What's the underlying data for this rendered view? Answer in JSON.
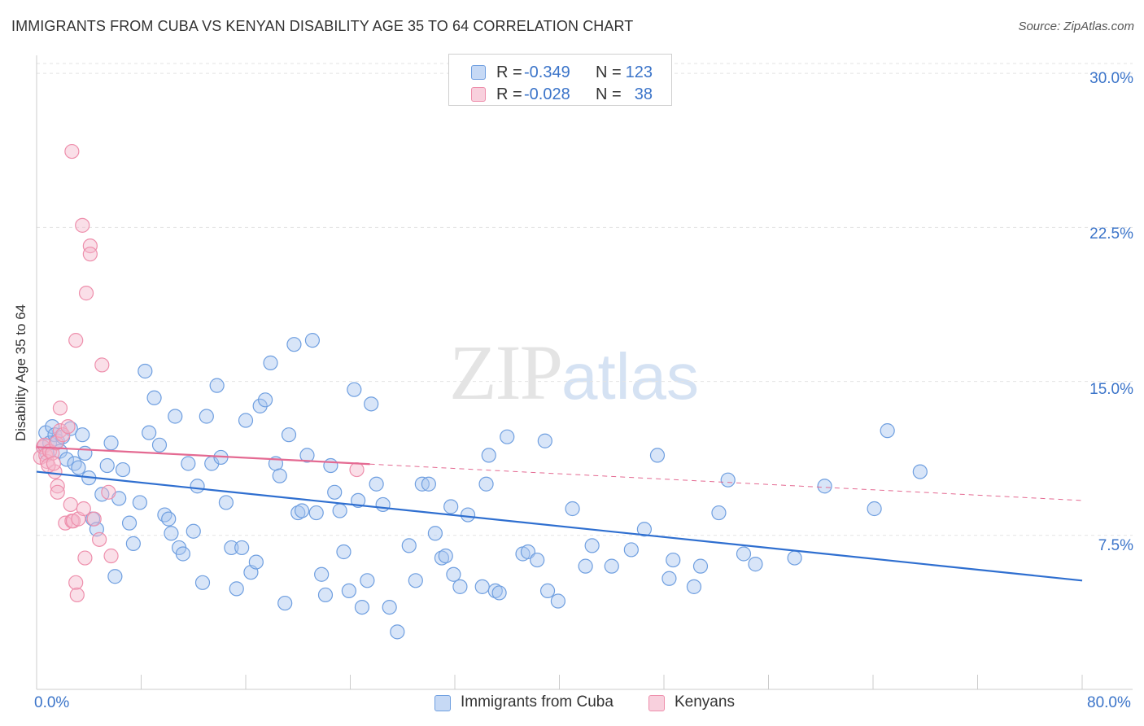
{
  "header": {
    "title": "IMMIGRANTS FROM CUBA VS KENYAN DISABILITY AGE 35 TO 64 CORRELATION CHART",
    "source": "Source: ZipAtlas.com"
  },
  "watermark": {
    "zip": "ZIP",
    "atlas": "atlas"
  },
  "legend_top": {
    "rows": [
      {
        "r_label": "R =",
        "r_value": "-0.349",
        "n_label": "N =",
        "n_value": "123",
        "color": "#a8c5ef"
      },
      {
        "r_label": "R =",
        "r_value": "-0.028",
        "n_label": "N =",
        "n_value": "38",
        "color": "#f4b8cb"
      }
    ]
  },
  "legend_bottom": [
    {
      "label": "Immigrants from Cuba",
      "color": "#a8c5ef"
    },
    {
      "label": "Kenyans",
      "color": "#f4b8cb"
    }
  ],
  "chart_data": {
    "type": "scatter",
    "title": "IMMIGRANTS FROM CUBA VS KENYAN DISABILITY AGE 35 TO 64 CORRELATION CHART",
    "xlabel": "",
    "ylabel": "Disability Age 35 to 64",
    "xlim": [
      0,
      80
    ],
    "ylim": [
      0,
      30.8
    ],
    "x_tick_labels": [
      "0.0%",
      "80.0%"
    ],
    "y_ticks": [
      7.5,
      15.0,
      22.5,
      30.0
    ],
    "y_tick_labels": [
      "7.5%",
      "15.0%",
      "22.5%",
      "30.0%"
    ],
    "grid": true,
    "series": [
      {
        "name": "Immigrants from Cuba",
        "color": "#6f9fe0",
        "fill": "#a8c5ef",
        "trend": {
          "x": [
            0,
            80
          ],
          "y": [
            10.6,
            5.3
          ],
          "color": "#2f6fd0",
          "dashed_from": null
        },
        "points": [
          [
            0.5,
            11.8
          ],
          [
            0.7,
            12.5
          ],
          [
            0.8,
            11.5
          ],
          [
            1.0,
            12.0
          ],
          [
            1.2,
            12.8
          ],
          [
            1.4,
            12.4
          ],
          [
            1.6,
            12.1
          ],
          [
            1.8,
            11.6
          ],
          [
            2.0,
            12.3
          ],
          [
            2.3,
            11.2
          ],
          [
            2.6,
            12.7
          ],
          [
            2.9,
            11.0
          ],
          [
            3.2,
            10.8
          ],
          [
            3.5,
            12.4
          ],
          [
            3.7,
            11.5
          ],
          [
            4.0,
            10.3
          ],
          [
            4.3,
            8.3
          ],
          [
            4.6,
            7.8
          ],
          [
            5.0,
            9.5
          ],
          [
            5.4,
            10.9
          ],
          [
            5.7,
            12.0
          ],
          [
            6.0,
            5.5
          ],
          [
            6.3,
            9.3
          ],
          [
            6.6,
            10.7
          ],
          [
            7.1,
            8.1
          ],
          [
            7.4,
            7.1
          ],
          [
            7.9,
            9.1
          ],
          [
            8.3,
            15.5
          ],
          [
            8.6,
            12.5
          ],
          [
            9.0,
            14.2
          ],
          [
            9.4,
            11.9
          ],
          [
            9.8,
            8.5
          ],
          [
            10.1,
            8.3
          ],
          [
            10.3,
            7.6
          ],
          [
            10.6,
            13.3
          ],
          [
            10.9,
            6.9
          ],
          [
            11.2,
            6.6
          ],
          [
            11.6,
            11.0
          ],
          [
            12.0,
            7.7
          ],
          [
            12.3,
            9.9
          ],
          [
            12.7,
            5.2
          ],
          [
            13.0,
            13.3
          ],
          [
            13.4,
            11.0
          ],
          [
            13.8,
            14.8
          ],
          [
            14.1,
            11.3
          ],
          [
            14.5,
            9.1
          ],
          [
            14.9,
            6.9
          ],
          [
            15.3,
            4.9
          ],
          [
            15.7,
            6.9
          ],
          [
            16.0,
            13.1
          ],
          [
            16.4,
            5.7
          ],
          [
            16.8,
            6.2
          ],
          [
            17.1,
            13.8
          ],
          [
            17.5,
            14.1
          ],
          [
            17.9,
            15.9
          ],
          [
            18.3,
            11.0
          ],
          [
            18.6,
            10.4
          ],
          [
            19.0,
            4.2
          ],
          [
            19.3,
            12.4
          ],
          [
            19.7,
            16.8
          ],
          [
            20.0,
            8.6
          ],
          [
            20.3,
            8.7
          ],
          [
            20.7,
            11.4
          ],
          [
            21.1,
            17.0
          ],
          [
            21.4,
            8.6
          ],
          [
            21.8,
            5.6
          ],
          [
            22.1,
            4.6
          ],
          [
            22.5,
            10.9
          ],
          [
            22.8,
            9.6
          ],
          [
            23.2,
            8.7
          ],
          [
            23.5,
            6.7
          ],
          [
            23.9,
            4.8
          ],
          [
            24.3,
            14.6
          ],
          [
            24.6,
            9.2
          ],
          [
            24.9,
            4.0
          ],
          [
            25.3,
            5.3
          ],
          [
            25.6,
            13.9
          ],
          [
            26.0,
            10.0
          ],
          [
            26.5,
            9.0
          ],
          [
            27.0,
            4.0
          ],
          [
            27.6,
            2.8
          ],
          [
            28.5,
            7.0
          ],
          [
            29.0,
            5.3
          ],
          [
            29.5,
            10.0
          ],
          [
            30.0,
            10.0
          ],
          [
            30.5,
            7.6
          ],
          [
            31.0,
            6.4
          ],
          [
            31.3,
            6.5
          ],
          [
            31.7,
            8.9
          ],
          [
            31.9,
            5.6
          ],
          [
            32.4,
            5.0
          ],
          [
            33.0,
            8.5
          ],
          [
            34.1,
            5.0
          ],
          [
            34.4,
            10.0
          ],
          [
            34.6,
            11.4
          ],
          [
            35.1,
            4.8
          ],
          [
            35.4,
            4.7
          ],
          [
            36.0,
            12.3
          ],
          [
            37.2,
            6.6
          ],
          [
            37.6,
            6.7
          ],
          [
            38.3,
            6.3
          ],
          [
            38.9,
            12.1
          ],
          [
            39.1,
            4.8
          ],
          [
            39.9,
            4.3
          ],
          [
            41.0,
            8.8
          ],
          [
            42.0,
            6.0
          ],
          [
            42.5,
            7.0
          ],
          [
            44.0,
            6.0
          ],
          [
            45.5,
            6.8
          ],
          [
            46.5,
            7.8
          ],
          [
            47.5,
            11.4
          ],
          [
            48.4,
            5.4
          ],
          [
            48.7,
            6.3
          ],
          [
            50.3,
            5.0
          ],
          [
            50.8,
            6.0
          ],
          [
            52.2,
            8.6
          ],
          [
            52.9,
            10.2
          ],
          [
            54.1,
            6.6
          ],
          [
            55.0,
            6.1
          ],
          [
            58.0,
            6.4
          ],
          [
            60.3,
            9.9
          ],
          [
            64.1,
            8.8
          ],
          [
            65.1,
            12.6
          ],
          [
            67.6,
            10.6
          ]
        ]
      },
      {
        "name": "Kenyans",
        "color": "#ee8fac",
        "fill": "#f4b8cb",
        "trend": {
          "x": [
            0,
            80
          ],
          "y": [
            11.8,
            9.2
          ],
          "color": "#e46a92",
          "dashed_from": 25.5
        },
        "points": [
          [
            0.3,
            11.3
          ],
          [
            0.5,
            11.8
          ],
          [
            0.6,
            11.9
          ],
          [
            0.7,
            11.4
          ],
          [
            0.8,
            11.1
          ],
          [
            1.0,
            11.6
          ],
          [
            1.2,
            11.5
          ],
          [
            1.4,
            10.6
          ],
          [
            1.5,
            12.0
          ],
          [
            1.6,
            9.9
          ],
          [
            1.6,
            9.6
          ],
          [
            1.8,
            12.6
          ],
          [
            1.8,
            13.7
          ],
          [
            2.0,
            12.4
          ],
          [
            2.2,
            8.1
          ],
          [
            2.4,
            12.8
          ],
          [
            2.6,
            9.0
          ],
          [
            2.7,
            26.2
          ],
          [
            2.7,
            8.2
          ],
          [
            2.8,
            8.2
          ],
          [
            3.0,
            17.0
          ],
          [
            3.0,
            5.2
          ],
          [
            3.1,
            4.6
          ],
          [
            3.2,
            8.3
          ],
          [
            3.5,
            22.6
          ],
          [
            3.6,
            8.8
          ],
          [
            3.7,
            6.4
          ],
          [
            4.1,
            21.6
          ],
          [
            4.1,
            21.2
          ],
          [
            4.4,
            8.3
          ],
          [
            4.8,
            7.3
          ],
          [
            5.0,
            15.8
          ],
          [
            5.5,
            9.6
          ],
          [
            5.7,
            6.5
          ],
          [
            3.8,
            19.3
          ],
          [
            0.9,
            10.9
          ],
          [
            1.3,
            11.0
          ],
          [
            24.5,
            10.7
          ]
        ]
      }
    ]
  }
}
